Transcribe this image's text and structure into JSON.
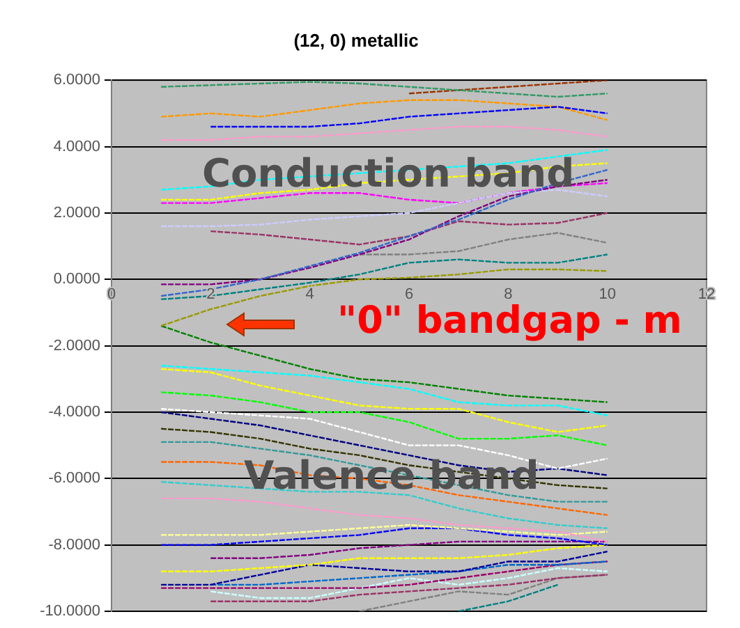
{
  "chart_data": {
    "type": "line",
    "title": "(12, 0) metallic",
    "x": [
      1,
      2,
      3,
      4,
      5,
      6,
      7,
      8,
      9,
      10
    ],
    "xlim": [
      0,
      12
    ],
    "xticks": [
      0,
      2,
      4,
      6,
      8,
      10,
      12
    ],
    "ylim": [
      -10,
      6
    ],
    "yticks": [
      {
        "value": -10,
        "label": "-10.0000"
      },
      {
        "value": -8,
        "label": "-8.0000"
      },
      {
        "value": -6,
        "label": "-6.0000"
      },
      {
        "value": -4,
        "label": "-4.0000"
      },
      {
        "value": -2,
        "label": "-2.0000"
      },
      {
        "value": 0,
        "label": "0.0000"
      },
      {
        "value": 2,
        "label": "2.0000"
      },
      {
        "value": 4,
        "label": "4.0000"
      },
      {
        "value": 6,
        "label": "6.0000"
      }
    ],
    "grid": "y",
    "marker": "none",
    "line_style": "dashed",
    "annotations": [
      "Conduction band",
      "Valence band",
      "\"0\" bandgap - m"
    ],
    "series": [
      {
        "color": "#3366cc",
        "values": [
          -0.5,
          -0.3,
          0,
          0.4,
          0.8,
          1.3,
          1.8,
          2.4,
          2.9,
          3.3
        ]
      },
      {
        "color": "#800080",
        "values": [
          -0.15,
          -0.15,
          0,
          0.35,
          0.75,
          1.2,
          1.9,
          2.5,
          2.8,
          3.0
        ]
      },
      {
        "color": "#999900",
        "values": [
          -1.4,
          -0.9,
          -0.5,
          -0.2,
          0,
          0.05,
          0.15,
          0.3,
          0.3,
          0.25
        ]
      },
      {
        "color": "#008080",
        "values": [
          -0.6,
          -0.5,
          -0.3,
          -0.1,
          0.15,
          0.5,
          0.6,
          0.5,
          0.5,
          0.75
        ]
      },
      {
        "color": "#808080",
        "values": [
          null,
          null,
          null,
          null,
          0.75,
          0.75,
          0.85,
          1.2,
          1.4,
          1.1
        ]
      },
      {
        "color": "#993366",
        "values": [
          null,
          1.45,
          1.35,
          1.2,
          1.05,
          1.3,
          1.75,
          1.65,
          1.7,
          2.0
        ]
      },
      {
        "color": "#ccccff",
        "values": [
          1.6,
          1.6,
          1.65,
          1.8,
          1.9,
          2.0,
          2.3,
          2.6,
          2.7,
          2.5
        ]
      },
      {
        "color": "#ff00ff",
        "values": [
          2.3,
          2.3,
          2.45,
          2.6,
          2.6,
          2.4,
          2.3,
          2.6,
          2.8,
          2.9
        ]
      },
      {
        "color": "#ffff00",
        "values": [
          2.4,
          2.4,
          2.6,
          2.7,
          2.9,
          3.0,
          3.1,
          3.2,
          3.4,
          3.5
        ]
      },
      {
        "color": "#00ffff",
        "values": [
          2.7,
          2.8,
          3.0,
          3.1,
          3.2,
          3.3,
          3.4,
          3.5,
          3.7,
          3.9
        ]
      },
      {
        "color": "#ff99cc",
        "values": [
          4.2,
          4.2,
          4.3,
          4.3,
          4.4,
          4.5,
          4.6,
          4.6,
          4.5,
          4.3
        ]
      },
      {
        "color": "#0000ff",
        "values": [
          null,
          4.6,
          4.6,
          4.6,
          4.7,
          4.9,
          5.0,
          5.1,
          5.2,
          5.0
        ]
      },
      {
        "color": "#ff9900",
        "values": [
          4.9,
          5.0,
          4.9,
          5.1,
          5.3,
          5.4,
          5.4,
          5.3,
          5.2,
          4.8
        ]
      },
      {
        "color": "#339966",
        "values": [
          5.8,
          5.85,
          5.9,
          5.95,
          5.9,
          5.8,
          5.7,
          5.6,
          5.5,
          5.6
        ]
      },
      {
        "color": "#993300",
        "values": [
          null,
          null,
          null,
          null,
          null,
          5.6,
          5.7,
          5.8,
          5.9,
          6.0
        ]
      },
      {
        "color": "#008000",
        "values": [
          -1.4,
          -1.9,
          -2.3,
          -2.7,
          -3.0,
          -3.1,
          -3.3,
          -3.5,
          -3.6,
          -3.7
        ]
      },
      {
        "color": "#00ffff",
        "values": [
          -2.6,
          -2.7,
          -2.8,
          -2.9,
          -3.1,
          -3.3,
          -3.7,
          -3.8,
          -3.8,
          -4.1
        ]
      },
      {
        "color": "#ffff00",
        "values": [
          -2.7,
          -2.8,
          -3.2,
          -3.5,
          -3.8,
          -3.9,
          -3.9,
          -4.3,
          -4.6,
          -4.4
        ]
      },
      {
        "color": "#00ff00",
        "values": [
          -3.4,
          -3.5,
          -3.7,
          -4.0,
          -4.0,
          -4.3,
          -4.8,
          -4.8,
          -4.7,
          -5.0
        ]
      },
      {
        "color": "#ffffff",
        "values": [
          -3.9,
          -4.0,
          -4.1,
          -4.2,
          -4.6,
          -5.0,
          -5.0,
          -5.3,
          -5.7,
          -5.4
        ]
      },
      {
        "color": "#000080",
        "values": [
          -4.0,
          -4.2,
          -4.4,
          -4.7,
          -5.0,
          -5.3,
          -5.6,
          -5.8,
          -5.7,
          -5.9
        ]
      },
      {
        "color": "#333300",
        "values": [
          -4.5,
          -4.6,
          -4.8,
          -5.1,
          -5.3,
          -5.6,
          -5.8,
          -6.0,
          -6.2,
          -6.3
        ]
      },
      {
        "color": "#339999",
        "values": [
          -4.9,
          -4.9,
          -5.1,
          -5.3,
          -5.6,
          -5.9,
          -6.2,
          -6.5,
          -6.7,
          -6.7
        ]
      },
      {
        "color": "#ff6600",
        "values": [
          -5.5,
          -5.5,
          -5.6,
          -5.9,
          -6.0,
          -6.2,
          -6.5,
          -6.7,
          -6.9,
          -7.1
        ]
      },
      {
        "color": "#33cccc",
        "values": [
          -6.1,
          -6.2,
          -6.3,
          -6.4,
          -6.4,
          -6.5,
          -6.9,
          -7.2,
          -7.4,
          -7.5
        ]
      },
      {
        "color": "#ff99cc",
        "values": [
          -6.6,
          -6.6,
          -6.7,
          -6.9,
          -7.1,
          -7.2,
          -7.4,
          -7.5,
          -7.6,
          -7.9
        ]
      },
      {
        "color": "#ffff99",
        "values": [
          -7.7,
          -7.7,
          -7.7,
          -7.6,
          -7.5,
          -7.4,
          -7.5,
          -7.6,
          -7.7,
          -7.6
        ]
      },
      {
        "color": "#0000ff",
        "values": [
          -8.0,
          -8.0,
          -7.9,
          -7.8,
          -7.7,
          -7.5,
          -7.5,
          -7.7,
          -7.8,
          -8.0
        ]
      },
      {
        "color": "#800080",
        "values": [
          null,
          -8.4,
          -8.4,
          -8.3,
          -8.1,
          -8.0,
          -7.9,
          -7.9,
          -7.9,
          -7.9
        ]
      },
      {
        "color": "#ffff00",
        "values": [
          -8.8,
          -8.8,
          -8.7,
          -8.6,
          -8.4,
          -8.4,
          -8.4,
          -8.3,
          -8.1,
          -8.0
        ]
      },
      {
        "color": "#000099",
        "values": [
          -9.2,
          -9.2,
          -8.9,
          -8.6,
          -8.7,
          -8.8,
          -8.8,
          -8.5,
          -8.5,
          -8.2
        ]
      },
      {
        "color": "#0066cc",
        "values": [
          null,
          -9.2,
          -9.2,
          -9.1,
          -9.0,
          -8.9,
          -8.8,
          -8.6,
          -8.6,
          -8.5
        ]
      },
      {
        "color": "#990066",
        "values": [
          -9.3,
          -9.3,
          -9.3,
          -9.3,
          -9.3,
          -9.2,
          -9.0,
          -8.8,
          -8.6,
          -8.5
        ]
      },
      {
        "color": "#ccffff",
        "values": [
          null,
          -9.4,
          -9.6,
          -9.6,
          -9.3,
          -9.0,
          -9.2,
          -9.0,
          -8.7,
          -8.8
        ]
      },
      {
        "color": "#993366",
        "values": [
          null,
          -9.7,
          -9.7,
          -9.7,
          -9.5,
          -9.4,
          -9.3,
          -9.2,
          -9.0,
          -8.9
        ]
      },
      {
        "color": "#808080",
        "values": [
          null,
          null,
          null,
          null,
          -10.0,
          -9.7,
          -9.4,
          -9.5,
          -9.0,
          -8.9
        ]
      },
      {
        "color": "#008080",
        "values": [
          null,
          null,
          null,
          null,
          null,
          null,
          -10.0,
          -9.7,
          -9.2,
          null
        ]
      }
    ]
  }
}
